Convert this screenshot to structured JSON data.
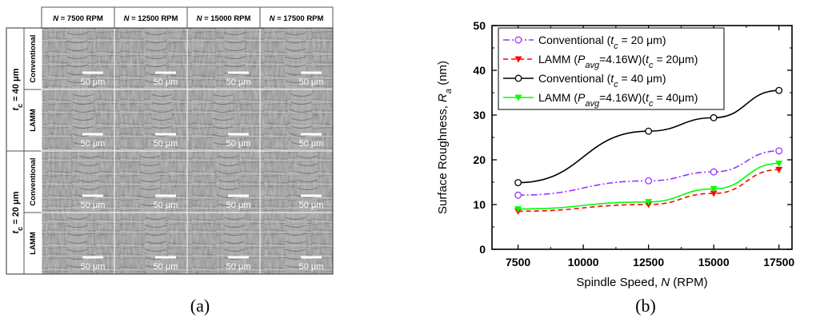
{
  "panel_a": {
    "caption": "(a)",
    "column_headers": [
      "N = 7500 RPM",
      "N = 12500 RPM",
      "N = 15000 RPM",
      "N = 17500 RPM"
    ],
    "groups": [
      {
        "label": "tc = 40 μm",
        "label_parts": [
          "t",
          "c",
          " = 40 μm"
        ],
        "rows": [
          "Conventional",
          "LAMM"
        ]
      },
      {
        "label": "tc = 20 μm",
        "label_parts": [
          "t",
          "c",
          " = 20 μm"
        ],
        "rows": [
          "Conventional",
          "LAMM"
        ]
      }
    ],
    "scale_bar_label": "50 μm"
  },
  "panel_b": {
    "caption": "(b)"
  },
  "chart_data": {
    "type": "line",
    "x": [
      7500,
      12500,
      15000,
      17500
    ],
    "xlim": [
      6500,
      18000
    ],
    "ylim": [
      0,
      50
    ],
    "xticks": [
      7500,
      10000,
      12500,
      15000,
      17500
    ],
    "yticks": [
      0,
      10,
      20,
      30,
      40,
      50
    ],
    "xlabel": "Spindle Speed, N (RPM)",
    "xlabel_parts": [
      "Spindle Speed, ",
      "N",
      " (RPM)"
    ],
    "ylabel": "Surface Roughness, Ra (nm)",
    "ylabel_parts": [
      "Surface Roughness, ",
      "R",
      "a",
      " (nm)"
    ],
    "legend_position": "top-left",
    "series": [
      {
        "name": "Conventional (tc = 20 μm)",
        "color": "#9933ff",
        "dash": "8,3,2,3",
        "marker": "circle-open",
        "values": [
          12.1,
          15.3,
          17.3,
          22.0
        ],
        "legend_parts": [
          [
            "Conventional (",
            ""
          ],
          [
            "t",
            "i"
          ],
          [
            "c",
            "sub-i"
          ],
          [
            " = 20 μm)",
            ""
          ]
        ]
      },
      {
        "name": "LAMM (Pavg=4.16W)(tc = 20μm)",
        "color": "#ff0000",
        "dash": "6,4",
        "marker": "triangle-down",
        "values": [
          8.5,
          10.0,
          12.5,
          17.8
        ],
        "legend_parts": [
          [
            "LAMM (",
            ""
          ],
          [
            "P",
            "i"
          ],
          [
            "avg",
            "sub-i"
          ],
          [
            "=4.16W)(",
            ""
          ],
          [
            "t",
            "i"
          ],
          [
            "c",
            "sub-i"
          ],
          [
            " = 20μm)",
            ""
          ]
        ]
      },
      {
        "name": "Conventional (tc = 40 μm)",
        "color": "#000000",
        "dash": "",
        "marker": "circle-open",
        "values": [
          14.9,
          26.4,
          29.4,
          35.5
        ],
        "legend_parts": [
          [
            "Conventional (",
            ""
          ],
          [
            "t",
            "i"
          ],
          [
            "c",
            "sub-i"
          ],
          [
            " = 40 μm)",
            ""
          ]
        ]
      },
      {
        "name": "LAMM (Pavg=4.16W)(tc = 40μm)",
        "color": "#00ff00",
        "dash": "",
        "marker": "triangle-down",
        "values": [
          9.0,
          10.6,
          13.5,
          19.2
        ],
        "legend_parts": [
          [
            "LAMM (",
            ""
          ],
          [
            "P",
            "i"
          ],
          [
            "avg",
            "sub-i"
          ],
          [
            "=4.16W)(",
            ""
          ],
          [
            "t",
            "i"
          ],
          [
            "c",
            "sub-i"
          ],
          [
            " = 40μm)",
            ""
          ]
        ]
      }
    ]
  }
}
